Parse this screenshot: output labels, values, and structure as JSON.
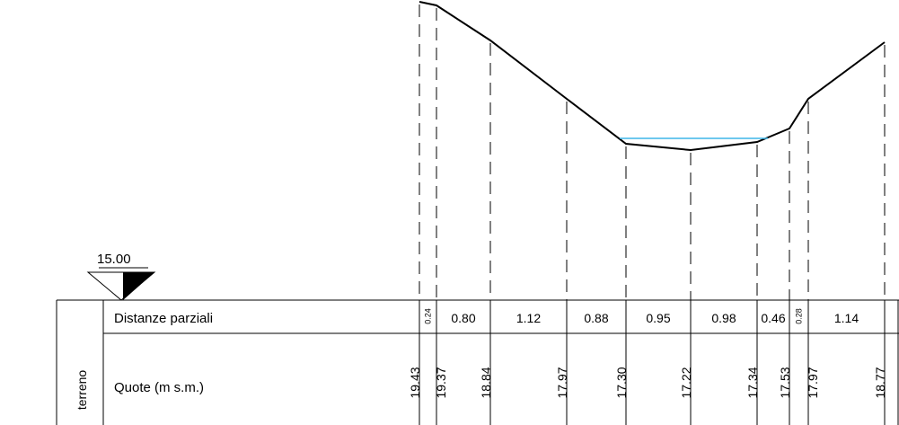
{
  "datum": {
    "label": "15.00"
  },
  "table": {
    "group_label": "terreno",
    "row_distances_label": "Distanze parziali",
    "row_elevations_label": "Quote (m s.m.)"
  },
  "profile": {
    "water_color": "#3fb6e8",
    "stations": [
      {
        "elevation": "19.43"
      },
      {
        "elevation": "19.37"
      },
      {
        "elevation": "18.84"
      },
      {
        "elevation": "17.97"
      },
      {
        "elevation": "17.30"
      },
      {
        "elevation": "17.22"
      },
      {
        "elevation": "17.34"
      },
      {
        "elevation": "17.53"
      },
      {
        "elevation": "17.97"
      },
      {
        "elevation": "18.77"
      }
    ],
    "distances": [
      "0.24",
      "0.80",
      "1.12",
      "0.88",
      "0.95",
      "0.98",
      "0.46",
      "0.28",
      "1.14",
      ""
    ]
  }
}
